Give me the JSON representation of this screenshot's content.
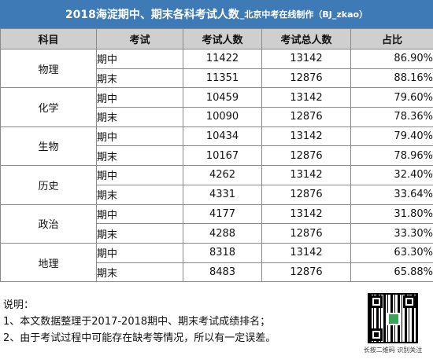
{
  "title": {
    "main": "2018海淀期中、期末各科考试人数",
    "sub": "_北京中考在线制作（BJ_zkao）"
  },
  "headers": [
    "科目",
    "考试",
    "考试人数",
    "考试总人数",
    "占比"
  ],
  "subjects": [
    {
      "name": "物理",
      "rows": [
        {
          "exam": "期中",
          "count": "11422",
          "total": "13142",
          "ratio": "86.90%"
        },
        {
          "exam": "期末",
          "count": "11351",
          "total": "12876",
          "ratio": "88.16%"
        }
      ]
    },
    {
      "name": "化学",
      "rows": [
        {
          "exam": "期中",
          "count": "10459",
          "total": "13142",
          "ratio": "79.60%"
        },
        {
          "exam": "期末",
          "count": "10090",
          "total": "12876",
          "ratio": "78.36%"
        }
      ]
    },
    {
      "name": "生物",
      "rows": [
        {
          "exam": "期中",
          "count": "10434",
          "total": "13142",
          "ratio": "79.40%"
        },
        {
          "exam": "期末",
          "count": "10167",
          "total": "12876",
          "ratio": "78.96%"
        }
      ]
    },
    {
      "name": "历史",
      "rows": [
        {
          "exam": "期中",
          "count": "4262",
          "total": "13142",
          "ratio": "32.40%"
        },
        {
          "exam": "期末",
          "count": "4331",
          "total": "12876",
          "ratio": "33.64%"
        }
      ]
    },
    {
      "name": "政治",
      "rows": [
        {
          "exam": "期中",
          "count": "4177",
          "total": "13142",
          "ratio": "31.80%"
        },
        {
          "exam": "期末",
          "count": "4288",
          "total": "12876",
          "ratio": "33.30%"
        }
      ]
    },
    {
      "name": "地理",
      "rows": [
        {
          "exam": "期中",
          "count": "8318",
          "total": "13142",
          "ratio": "63.30%"
        },
        {
          "exam": "期末",
          "count": "8483",
          "total": "12876",
          "ratio": "65.88%"
        }
      ]
    }
  ],
  "notes": {
    "heading": "说明：",
    "items": [
      "1、本文数据整理于2017-2018期中、期末考试成绩排名；",
      "2、由于考试过程中可能存在缺考等情况，所以有一定误差。"
    ]
  },
  "qr": {
    "icon": "qr-code-icon",
    "caption": "长按二维码  识别关注"
  },
  "colors": {
    "title_bg": "#3e7bb6",
    "header_bg": "#cfcfcf",
    "border": "#8a8a8a"
  }
}
